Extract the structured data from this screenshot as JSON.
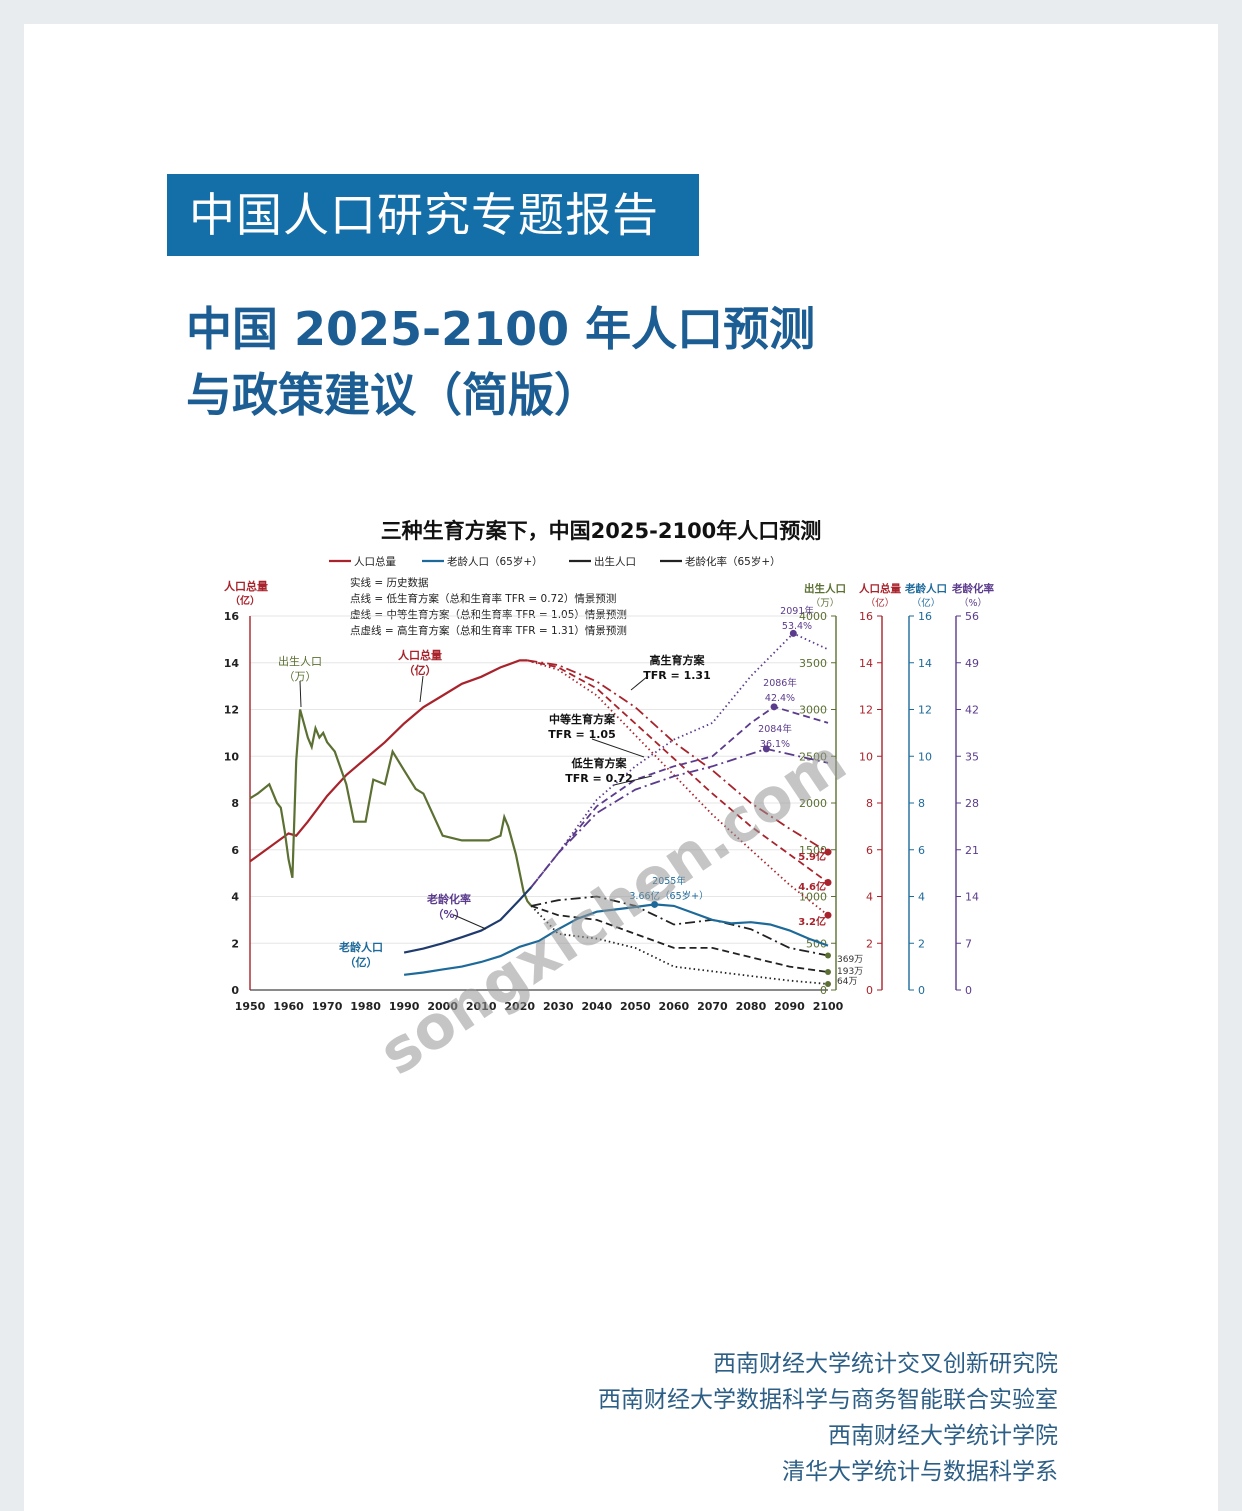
{
  "header": {
    "banner": "中国人口研究专题报告",
    "title_line1": "中国 2025-2100 年人口预测",
    "title_line2": "与政策建议（简版）"
  },
  "colors": {
    "total_population": "#a8232b",
    "elderly_population": "#1d6a9a",
    "births": "#5b7032",
    "aging_rate": "#5b3b8c",
    "banner": "#146ea8",
    "title": "#1c5e93"
  },
  "chart_data": {
    "type": "line",
    "title": "三种生育方案下，中国2025-2100年人口预测",
    "legend": [
      "人口总量",
      "老龄人口（65岁+）",
      "出生人口",
      "老龄化率（65岁+）"
    ],
    "line_styles": [
      "实线 = 历史数据",
      "点线 = 低生育方案（总和生育率 TFR = 0.72）情景预测",
      "虚线 = 中等生育方案（总和生育率 TFR = 1.05）情景预测",
      "点虚线 = 高生育方案（总和生育率 TFR = 1.31）情景预测"
    ],
    "x_ticks": [
      "1950",
      "1960",
      "1970",
      "1980",
      "1990",
      "2000",
      "2010",
      "2020",
      "2030",
      "2040",
      "2050",
      "2060",
      "2070",
      "2080",
      "2090",
      "2100"
    ],
    "axes": {
      "left": {
        "label": "人口总量",
        "unit": "（亿）",
        "ticks": [
          "0",
          "2",
          "4",
          "6",
          "8",
          "10",
          "12",
          "14",
          "16"
        ],
        "range": [
          0,
          16
        ]
      },
      "births": {
        "label": "出生人口",
        "unit": "（万）",
        "ticks": [
          "0",
          "500",
          "1000",
          "1500",
          "2000",
          "2500",
          "3000",
          "3500",
          "4000"
        ],
        "range": [
          0,
          4000
        ]
      },
      "total": {
        "label": "人口总量",
        "unit": "（亿）",
        "ticks": [
          "0",
          "2",
          "4",
          "6",
          "8",
          "10",
          "12",
          "14",
          "16"
        ],
        "range": [
          0,
          16
        ]
      },
      "elderly": {
        "label": "老龄人口",
        "unit": "（亿）",
        "ticks": [
          "0",
          "2",
          "4",
          "6",
          "8",
          "10",
          "12",
          "14",
          "16"
        ],
        "range": [
          0,
          16
        ]
      },
      "aging": {
        "label": "老龄化率",
        "unit": "（%）",
        "ticks": [
          "0",
          "7",
          "14",
          "21",
          "28",
          "35",
          "42",
          "49",
          "56"
        ],
        "range": [
          0,
          56
        ]
      }
    },
    "series": [
      {
        "name": "人口总量",
        "scenario": "历史数据",
        "axis": "total",
        "x": [
          1950,
          1955,
          1960,
          1962,
          1965,
          1970,
          1975,
          1980,
          1985,
          1990,
          1995,
          2000,
          2005,
          2010,
          2015,
          2020,
          2022
        ],
        "y": [
          5.5,
          6.1,
          6.7,
          6.6,
          7.2,
          8.3,
          9.2,
          9.9,
          10.6,
          11.4,
          12.1,
          12.6,
          13.1,
          13.4,
          13.8,
          14.1,
          14.1
        ]
      },
      {
        "name": "人口总量",
        "scenario": "高生育方案",
        "axis": "total",
        "x": [
          2022,
          2030,
          2040,
          2050,
          2060,
          2070,
          2080,
          2090,
          2100
        ],
        "y": [
          14.1,
          13.9,
          13.2,
          12.1,
          10.6,
          9.4,
          8.0,
          6.9,
          5.9
        ]
      },
      {
        "name": "人口总量",
        "scenario": "中等生育方案",
        "axis": "total",
        "x": [
          2022,
          2030,
          2040,
          2050,
          2060,
          2070,
          2080,
          2090,
          2100
        ],
        "y": [
          14.1,
          13.8,
          12.9,
          11.4,
          9.9,
          8.4,
          7.0,
          5.8,
          4.6
        ]
      },
      {
        "name": "人口总量",
        "scenario": "低生育方案",
        "axis": "total",
        "x": [
          2022,
          2030,
          2040,
          2050,
          2060,
          2070,
          2080,
          2090,
          2100
        ],
        "y": [
          14.1,
          13.7,
          12.6,
          10.9,
          9.2,
          7.5,
          6.0,
          4.5,
          3.2
        ]
      },
      {
        "name": "出生人口",
        "scenario": "历史数据",
        "axis": "births",
        "x": [
          1950,
          1952,
          1955,
          1957,
          1958,
          1959,
          1960,
          1961,
          1962,
          1963,
          1965,
          1966,
          1967,
          1968,
          1969,
          1970,
          1972,
          1975,
          1977,
          1980,
          1982,
          1985,
          1987,
          1990,
          1993,
          1995,
          2000,
          2005,
          2010,
          2012,
          2015,
          2016,
          2017,
          2019,
          2021,
          2022,
          2023
        ],
        "y": [
          2050,
          2100,
          2200,
          2000,
          1950,
          1700,
          1400,
          1200,
          2450,
          3000,
          2700,
          2600,
          2800,
          2700,
          2750,
          2650,
          2550,
          2200,
          1800,
          1800,
          2250,
          2200,
          2550,
          2350,
          2150,
          2100,
          1650,
          1600,
          1600,
          1600,
          1650,
          1850,
          1750,
          1450,
          1050,
          950,
          900
        ]
      },
      {
        "name": "出生人口",
        "scenario": "高生育方案",
        "axis": "births",
        "x": [
          2023,
          2030,
          2040,
          2050,
          2060,
          2070,
          2080,
          2090,
          2100
        ],
        "y": [
          900,
          960,
          1000,
          900,
          700,
          750,
          650,
          450,
          369
        ]
      },
      {
        "name": "出生人口",
        "scenario": "中等生育方案",
        "axis": "births",
        "x": [
          2023,
          2030,
          2040,
          2050,
          2060,
          2070,
          2080,
          2090,
          2100
        ],
        "y": [
          900,
          800,
          750,
          600,
          450,
          450,
          350,
          250,
          193
        ]
      },
      {
        "name": "出生人口",
        "scenario": "低生育方案",
        "axis": "births",
        "x": [
          2023,
          2030,
          2040,
          2050,
          2060,
          2070,
          2080,
          2090,
          2100
        ],
        "y": [
          900,
          600,
          550,
          450,
          250,
          200,
          150,
          100,
          64
        ]
      },
      {
        "name": "老龄人口（65岁+）",
        "axis": "elderly",
        "x": [
          1990,
          1995,
          2000,
          2005,
          2010,
          2015,
          2020,
          2025,
          2030,
          2035,
          2040,
          2045,
          2050,
          2055,
          2060,
          2065,
          2070,
          2075,
          2080,
          2085,
          2090,
          2095,
          2100
        ],
        "y": [
          0.65,
          0.75,
          0.88,
          1.0,
          1.2,
          1.45,
          1.85,
          2.1,
          2.6,
          3.05,
          3.35,
          3.45,
          3.55,
          3.66,
          3.6,
          3.3,
          3.0,
          2.85,
          2.9,
          2.8,
          2.55,
          2.2,
          1.9
        ]
      },
      {
        "name": "老龄化率（65岁+）",
        "scenario": "历史数据",
        "axis": "aging",
        "x": [
          1990,
          1995,
          2000,
          2005,
          2010,
          2015,
          2020,
          2023
        ],
        "y": [
          5.6,
          6.2,
          7.0,
          7.9,
          8.9,
          10.5,
          13.5,
          15.4
        ]
      },
      {
        "name": "老龄化率（65岁+）",
        "scenario": "低生育方案",
        "axis": "aging",
        "x": [
          2023,
          2030,
          2040,
          2050,
          2060,
          2070,
          2080,
          2091,
          2100
        ],
        "y": [
          15.4,
          20.5,
          28.5,
          33.5,
          37.5,
          40,
          47,
          53.4,
          51
        ]
      },
      {
        "name": "老龄化率（65岁+）",
        "scenario": "中等生育方案",
        "axis": "aging",
        "x": [
          2023,
          2030,
          2040,
          2050,
          2060,
          2070,
          2080,
          2086,
          2100
        ],
        "y": [
          15.4,
          20.5,
          27.5,
          31.5,
          33.5,
          35,
          40,
          42.4,
          40
        ]
      },
      {
        "name": "老龄化率（65岁+）",
        "scenario": "高生育方案",
        "axis": "aging",
        "x": [
          2023,
          2030,
          2040,
          2050,
          2060,
          2070,
          2084,
          2100
        ],
        "y": [
          15.4,
          20.5,
          26.5,
          30,
          32,
          33.5,
          36.1,
          34
        ]
      }
    ],
    "annotations": {
      "births_hist": [
        "出生人口",
        "（万）"
      ],
      "total_hist": [
        "人口总量",
        "（亿）"
      ],
      "aging_hist": [
        "老龄化率",
        "（%）"
      ],
      "elderly_hist": [
        "老龄人口",
        "（亿）"
      ],
      "high": [
        "高生育方案",
        "TFR = 1.31"
      ],
      "mid": [
        "中等生育方案",
        "TFR = 1.05"
      ],
      "low": [
        "低生育方案",
        "TFR = 0.72"
      ],
      "peak_low": [
        "2091年",
        "53.4%"
      ],
      "peak_mid": [
        "2086年",
        "42.4%"
      ],
      "peak_high": [
        "2084年",
        "36.1%"
      ],
      "elderly_peak": [
        "2055年",
        "3.66亿（65岁+）"
      ],
      "end_total": [
        "5.9亿",
        "4.6亿",
        "3.2亿"
      ],
      "end_births": [
        "369万",
        "193万",
        "64万"
      ]
    }
  },
  "watermark": "songxichen.com",
  "institutes": [
    "西南财经大学统计交叉创新研究院",
    "西南财经大学数据科学与商务智能联合实验室",
    "西南财经大学统计学院",
    "清华大学统计与数据科学系"
  ]
}
